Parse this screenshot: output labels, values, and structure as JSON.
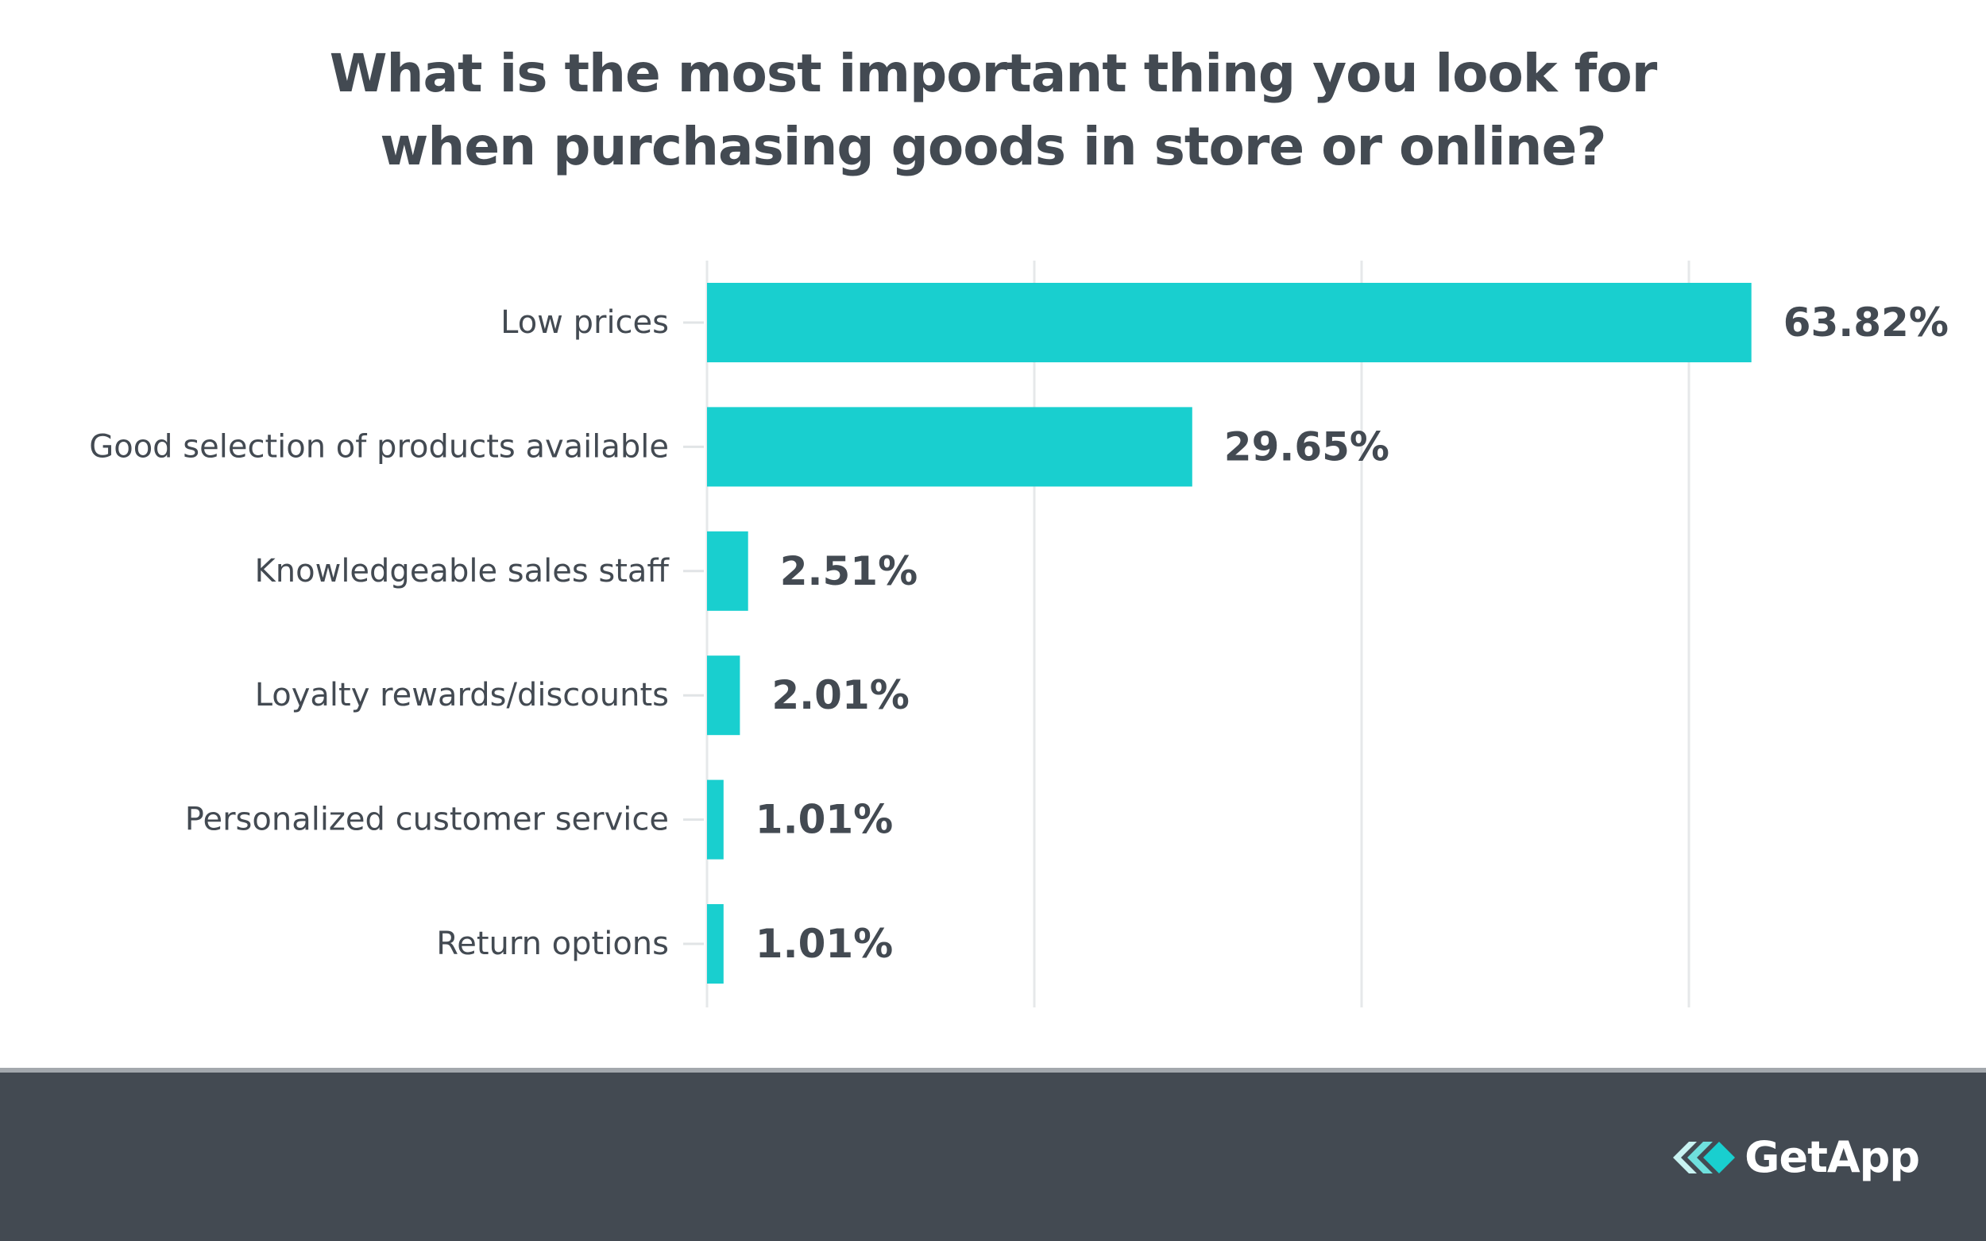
{
  "chart_data": {
    "type": "bar",
    "orientation": "horizontal",
    "title_lines": [
      "What is the most important thing you look for",
      "when purchasing goods in store or online?"
    ],
    "categories": [
      "Low prices",
      "Good selection of products available",
      "Knowledgeable sales staff",
      "Loyalty rewards/discounts",
      "Personalized customer service",
      "Return options"
    ],
    "values": [
      63.82,
      29.65,
      2.51,
      2.01,
      1.01,
      1.01
    ],
    "value_labels": [
      "63.82%",
      "29.65%",
      "2.51%",
      "2.01%",
      "1.01%",
      "1.01%"
    ],
    "xlim": [
      0,
      80
    ],
    "x_gridlines": [
      0,
      20,
      40,
      60
    ],
    "grid": true,
    "bar_color": "#19cfcf",
    "text_color": "#434a52"
  },
  "footer": {
    "background": "#434a52",
    "logo_text": "GetApp"
  }
}
